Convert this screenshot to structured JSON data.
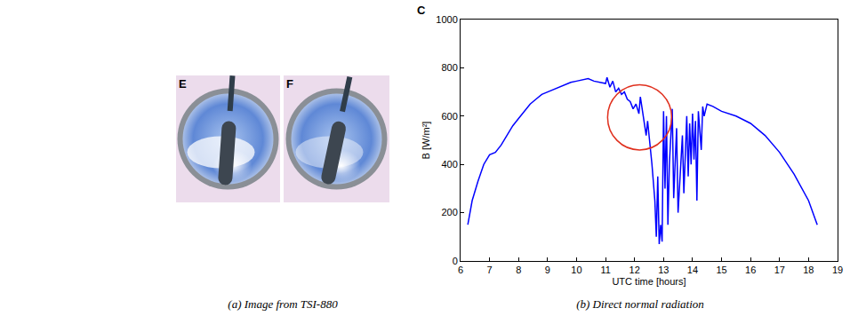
{
  "images": {
    "panels": [
      {
        "label": "E"
      },
      {
        "label": "F"
      }
    ],
    "caption": "(a) Image from TSI-880"
  },
  "chart_data": {
    "type": "line",
    "panel_label": "C",
    "caption": "(b) Direct normal radiation",
    "x_label": "UTC time [hours]",
    "y_label": "B [W/m²]",
    "color": "#0000ff",
    "x": [
      6.25,
      6.4,
      6.6,
      6.8,
      7.0,
      7.2,
      7.4,
      7.6,
      7.8,
      8.0,
      8.2,
      8.4,
      8.6,
      8.8,
      9.0,
      9.2,
      9.4,
      9.6,
      9.8,
      10.0,
      10.2,
      10.4,
      10.6,
      10.8,
      11.0,
      11.05,
      11.15,
      11.25,
      11.35,
      11.45,
      11.55,
      11.65,
      11.75,
      11.85,
      11.95,
      12.05,
      12.15,
      12.2,
      12.3,
      12.4,
      12.45,
      12.55,
      12.6,
      12.7,
      12.75,
      12.8,
      12.85,
      12.9,
      12.95,
      13.0,
      13.05,
      13.1,
      13.15,
      13.2,
      13.3,
      13.35,
      13.45,
      13.5,
      13.6,
      13.65,
      13.7,
      13.8,
      13.85,
      13.9,
      13.95,
      14.0,
      14.05,
      14.1,
      14.15,
      14.2,
      14.3,
      14.35,
      14.4,
      14.5,
      14.7,
      15.0,
      15.5,
      16.0,
      16.5,
      17.0,
      17.5,
      18.0,
      18.3
    ],
    "values": [
      150,
      250,
      330,
      400,
      440,
      450,
      480,
      520,
      560,
      590,
      620,
      650,
      670,
      690,
      700,
      710,
      720,
      730,
      740,
      745,
      750,
      755,
      745,
      740,
      735,
      760,
      720,
      745,
      700,
      715,
      690,
      700,
      670,
      660,
      630,
      650,
      610,
      680,
      590,
      520,
      580,
      470,
      400,
      250,
      100,
      350,
      70,
      150,
      80,
      620,
      300,
      600,
      150,
      400,
      630,
      260,
      550,
      200,
      450,
      520,
      280,
      600,
      350,
      570,
      400,
      610,
      420,
      580,
      250,
      620,
      460,
      640,
      600,
      650,
      640,
      620,
      600,
      570,
      520,
      450,
      360,
      250,
      150
    ],
    "xlim": [
      6,
      19
    ],
    "ylim": [
      0,
      1000
    ],
    "xticks": [
      6,
      7,
      8,
      9,
      10,
      11,
      12,
      13,
      14,
      15,
      16,
      17,
      18,
      19
    ],
    "yticks": [
      0,
      200,
      400,
      600,
      800,
      1000
    ],
    "grid": false
  }
}
